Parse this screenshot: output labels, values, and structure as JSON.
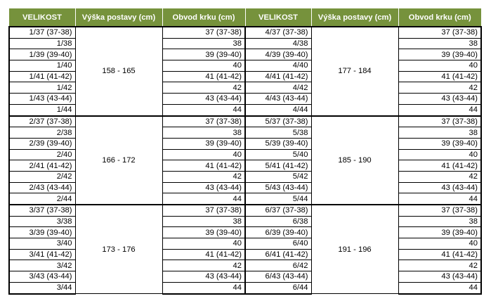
{
  "headers": [
    "VELIKOST",
    "Výška postavy (cm)",
    "Obvod krku (cm)",
    "VELIKOST",
    "Výška postavy (cm)",
    "Obvod krku (cm)"
  ],
  "groups": [
    {
      "left_height": "158 - 165",
      "right_height": "177 - 184",
      "rows": [
        {
          "l_size": "1/37 (37-38)",
          "l_neck": "37 (37-38)",
          "r_size": "4/37 (37-38)",
          "r_neck": "37 (37-38)"
        },
        {
          "l_size": "1/38",
          "l_neck": "38",
          "r_size": "4/38",
          "r_neck": "38"
        },
        {
          "l_size": "1/39 (39-40)",
          "l_neck": "39 (39-40)",
          "r_size": "4/39 (39-40)",
          "r_neck": "39 (39-40)"
        },
        {
          "l_size": "1/40",
          "l_neck": "40",
          "r_size": "4/40",
          "r_neck": "40"
        },
        {
          "l_size": "1/41 (41-42)",
          "l_neck": "41 (41-42)",
          "r_size": "4/41 (41-42)",
          "r_neck": "41 (41-42)"
        },
        {
          "l_size": "1/42",
          "l_neck": "42",
          "r_size": "4/42",
          "r_neck": "42"
        },
        {
          "l_size": "1/43 (43-44)",
          "l_neck": "43 (43-44)",
          "r_size": "4/43 (43-44)",
          "r_neck": "43 (43-44)"
        },
        {
          "l_size": "1/44",
          "l_neck": "44",
          "r_size": "4/44",
          "r_neck": "44"
        }
      ]
    },
    {
      "left_height": "166 - 172",
      "right_height": "185 - 190",
      "rows": [
        {
          "l_size": "2/37 (37-38)",
          "l_neck": "37 (37-38)",
          "r_size": "5/37 (37-38)",
          "r_neck": "37 (37-38)"
        },
        {
          "l_size": "2/38",
          "l_neck": "38",
          "r_size": "5/38",
          "r_neck": "38"
        },
        {
          "l_size": "2/39 (39-40)",
          "l_neck": "39 (39-40)",
          "r_size": "5/39 (39-40)",
          "r_neck": "39 (39-40)"
        },
        {
          "l_size": "2/40",
          "l_neck": "40",
          "r_size": "5/40",
          "r_neck": "40"
        },
        {
          "l_size": "2/41 (41-42)",
          "l_neck": "41 (41-42)",
          "r_size": "5/41 (41-42)",
          "r_neck": "41 (41-42)"
        },
        {
          "l_size": "2/42",
          "l_neck": "42",
          "r_size": "5/42",
          "r_neck": "42"
        },
        {
          "l_size": "2/43 (43-44)",
          "l_neck": "43 (43-44)",
          "r_size": "5/43 (43-44)",
          "r_neck": "43 (43-44)"
        },
        {
          "l_size": "2/44",
          "l_neck": "44",
          "r_size": "5/44",
          "r_neck": "44"
        }
      ]
    },
    {
      "left_height": "173 - 176",
      "right_height": "191 - 196",
      "rows": [
        {
          "l_size": "3/37 (37-38)",
          "l_neck": "37 (37-38)",
          "r_size": "6/37 (37-38)",
          "r_neck": "37 (37-38)"
        },
        {
          "l_size": "3/38",
          "l_neck": "38",
          "r_size": "6/38",
          "r_neck": "38"
        },
        {
          "l_size": "3/39 (39-40)",
          "l_neck": "39 (39-40)",
          "r_size": "6/39 (39-40)",
          "r_neck": "39 (39-40)"
        },
        {
          "l_size": "3/40",
          "l_neck": "40",
          "r_size": "6/40",
          "r_neck": "40"
        },
        {
          "l_size": "3/41 (41-42)",
          "l_neck": "41 (41-42)",
          "r_size": "6/41 (41-42)",
          "r_neck": "41 (41-42)"
        },
        {
          "l_size": "3/42",
          "l_neck": "42",
          "r_size": "6/42",
          "r_neck": "42"
        },
        {
          "l_size": "3/43 (43-44)",
          "l_neck": "43 (43-44)",
          "r_size": "6/43 (43-44)",
          "r_neck": "43 (43-44)"
        },
        {
          "l_size": "3/44",
          "l_neck": "44",
          "r_size": "6/44",
          "r_neck": "44"
        }
      ]
    }
  ],
  "colors": {
    "header_bg": "#76923c",
    "header_text": "#ffffff",
    "border": "#000000"
  }
}
